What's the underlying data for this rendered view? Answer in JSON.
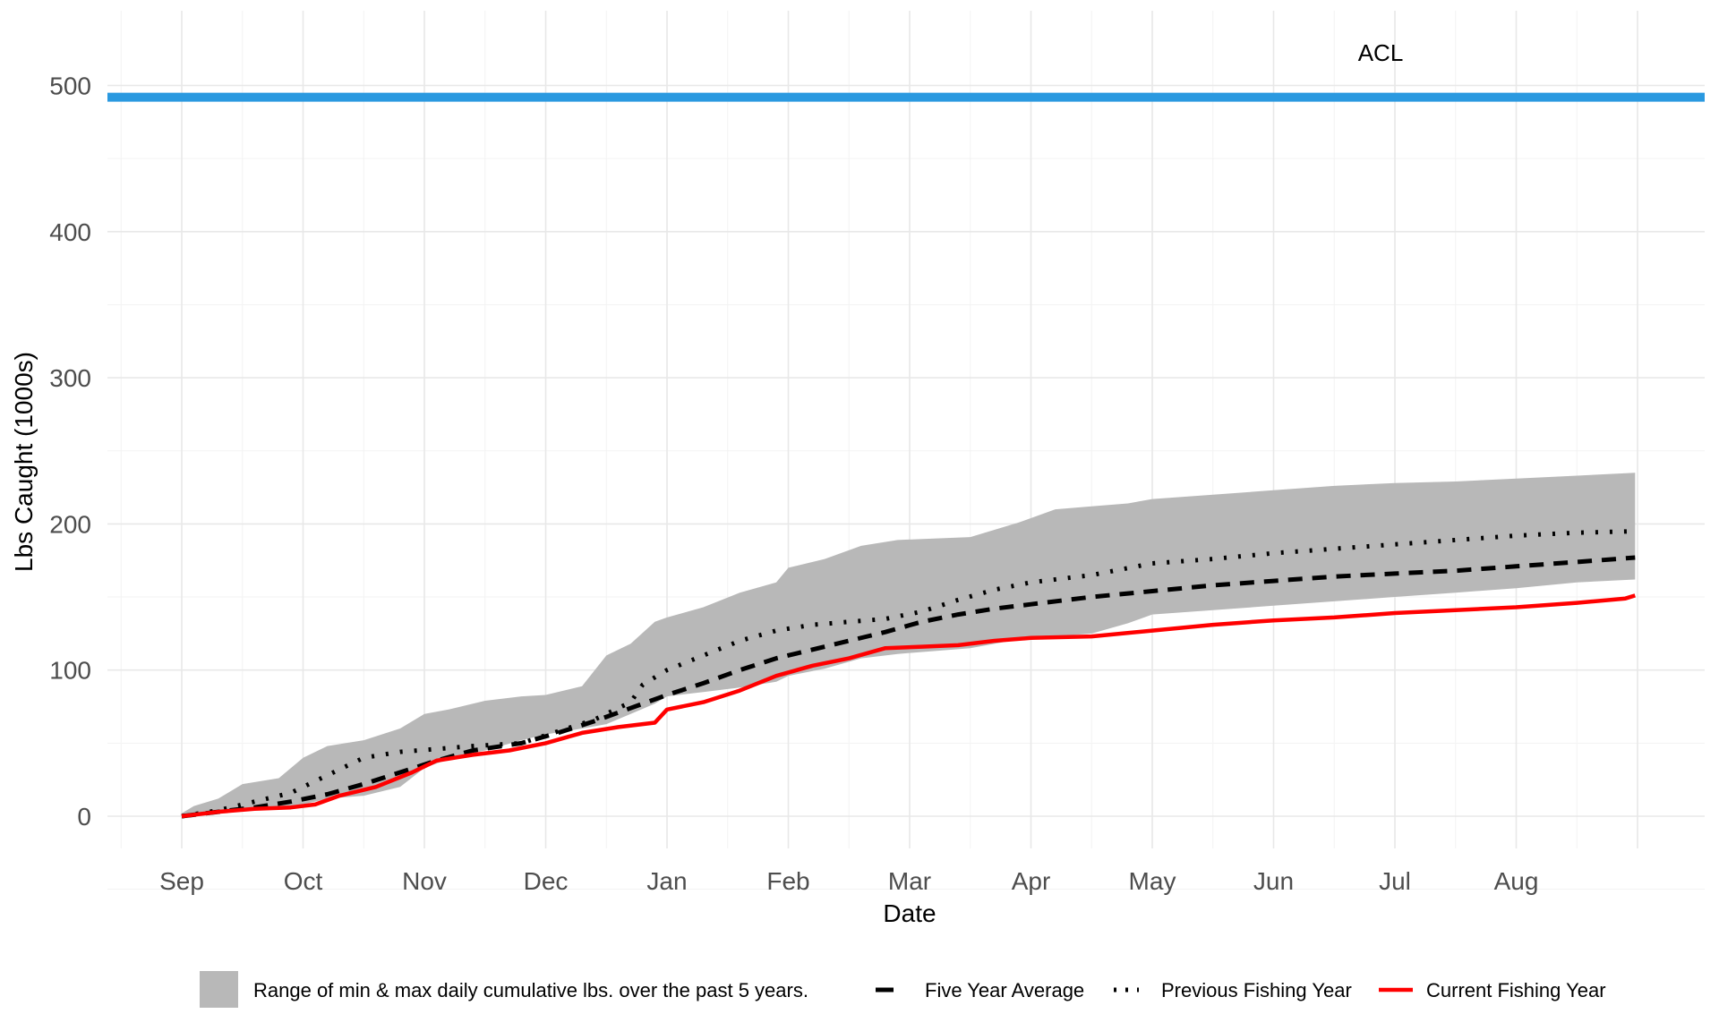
{
  "chart_data": {
    "type": "line",
    "title": "",
    "xlabel": "Date",
    "ylabel": "Lbs Caught (1000s)",
    "x_ticks": [
      "Sep",
      "Oct",
      "Nov",
      "Dec",
      "Jan",
      "Feb",
      "Mar",
      "Apr",
      "May",
      "Jun",
      "Jul",
      "Aug"
    ],
    "y_ticks": [
      0,
      100,
      200,
      300,
      400,
      500
    ],
    "xlim": [
      0,
      12
    ],
    "ylim": [
      -25,
      545
    ],
    "grid": true,
    "legend_position": "bottom",
    "reference_line": {
      "label": "ACL",
      "value": 492,
      "color": "#2A99E0"
    },
    "band": {
      "name": "Range of min & max daily cumulative lbs. over the past 5 years.",
      "color": "#B8B8B8",
      "x": [
        0,
        0.1,
        0.3,
        0.5,
        0.8,
        1.0,
        1.2,
        1.5,
        1.8,
        2.0,
        2.2,
        2.5,
        2.8,
        3.0,
        3.3,
        3.5,
        3.7,
        3.9,
        4.0,
        4.3,
        4.6,
        4.9,
        5.0,
        5.3,
        5.6,
        5.9,
        6.2,
        6.5,
        6.9,
        7.2,
        7.5,
        7.8,
        8.0,
        8.5,
        9.0,
        9.5,
        10.0,
        10.5,
        11.0,
        11.5,
        11.98
      ],
      "lower": [
        0,
        1,
        3,
        4,
        6,
        8,
        12,
        14,
        20,
        33,
        39,
        45,
        52,
        56,
        60,
        63,
        70,
        77,
        82,
        85,
        88,
        92,
        96,
        101,
        108,
        111,
        113,
        115,
        121,
        123,
        125,
        132,
        138,
        141,
        144,
        147,
        150,
        153,
        156,
        160,
        162
      ],
      "upper": [
        2,
        7,
        12,
        22,
        26,
        40,
        48,
        52,
        60,
        70,
        73,
        79,
        82,
        83,
        89,
        110,
        118,
        133,
        136,
        143,
        153,
        160,
        170,
        176,
        185,
        189,
        190,
        191,
        201,
        210,
        212,
        214,
        217,
        220,
        223,
        226,
        228,
        229,
        231,
        233,
        235
      ]
    },
    "series": [
      {
        "name": "Five Year Average",
        "color": "#000000",
        "style": "dashed",
        "x": [
          0,
          0.3,
          0.6,
          0.9,
          1.2,
          1.5,
          1.8,
          2.1,
          2.4,
          2.8,
          3.1,
          3.4,
          3.7,
          4.0,
          4.3,
          4.6,
          4.9,
          5.2,
          5.5,
          5.8,
          6.1,
          6.4,
          6.7,
          7.0,
          7.5,
          8.0,
          8.5,
          9.0,
          9.5,
          10.0,
          10.5,
          11.0,
          11.5,
          11.98
        ],
        "y": [
          0,
          3,
          6,
          10,
          15,
          22,
          30,
          38,
          45,
          50,
          57,
          65,
          74,
          83,
          91,
          100,
          108,
          114,
          120,
          126,
          133,
          138,
          142,
          145,
          150,
          154,
          158,
          161,
          164,
          166,
          168,
          171,
          174,
          177
        ]
      },
      {
        "name": "Previous Fishing Year",
        "color": "#000000",
        "style": "dotted",
        "x": [
          0,
          0.3,
          0.6,
          0.9,
          1.2,
          1.5,
          1.8,
          2.1,
          2.4,
          2.8,
          3.1,
          3.4,
          3.7,
          3.8,
          4.0,
          4.3,
          4.6,
          4.9,
          5.2,
          5.5,
          5.8,
          6.1,
          6.4,
          6.7,
          7.0,
          7.5,
          8.0,
          8.5,
          9.0,
          9.5,
          10.0,
          10.5,
          11.0,
          11.5,
          11.98
        ],
        "y": [
          0,
          4,
          10,
          16,
          28,
          40,
          44,
          46,
          48,
          50,
          58,
          66,
          78,
          90,
          100,
          110,
          120,
          127,
          131,
          133,
          135,
          140,
          148,
          155,
          160,
          165,
          173,
          176,
          180,
          183,
          186,
          189,
          192,
          194,
          195
        ]
      },
      {
        "name": "Current Fishing Year",
        "color": "#FF0000",
        "style": "solid",
        "x": [
          0,
          0.3,
          0.6,
          0.9,
          1.1,
          1.3,
          1.6,
          1.9,
          2.1,
          2.4,
          2.7,
          3.0,
          3.3,
          3.6,
          3.9,
          4.0,
          4.3,
          4.6,
          4.9,
          5.2,
          5.5,
          5.8,
          6.1,
          6.4,
          6.7,
          7.0,
          7.5,
          8.0,
          8.5,
          9.0,
          9.5,
          10.0,
          10.5,
          11.0,
          11.5,
          11.9,
          11.98
        ],
        "y": [
          0,
          3,
          5,
          6,
          8,
          14,
          20,
          30,
          38,
          42,
          45,
          50,
          57,
          61,
          64,
          73,
          78,
          86,
          96,
          103,
          108,
          115,
          116,
          117,
          120,
          122,
          123,
          127,
          131,
          134,
          136,
          139,
          141,
          143,
          146,
          149,
          151
        ]
      }
    ]
  }
}
